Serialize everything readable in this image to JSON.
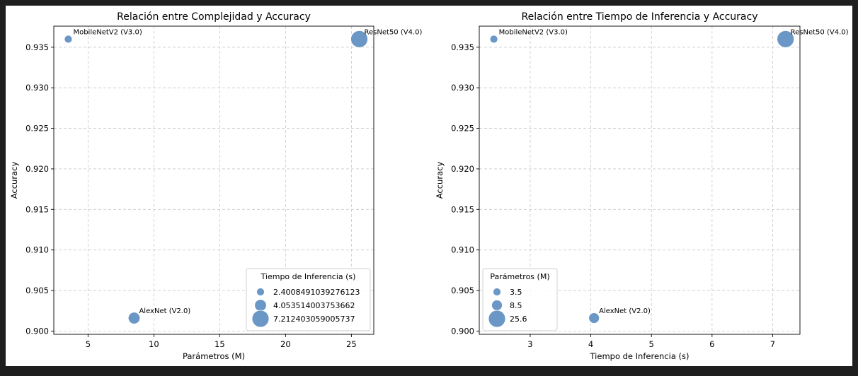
{
  "colors": {
    "background": "#1e1e1e",
    "panel": "#ffffff",
    "marker": "#5b8cc0",
    "grid": "#c8c8c8"
  },
  "chart_data": [
    {
      "type": "scatter",
      "title": "Relación entre Complejidad y Accuracy",
      "xlabel": "Parámetros (M)",
      "ylabel": "Accuracy",
      "xlim": [
        2.4,
        26.7
      ],
      "ylim": [
        0.8996,
        0.9376
      ],
      "xticks": [
        5,
        10,
        15,
        20,
        25
      ],
      "yticks": [
        0.9,
        0.905,
        0.91,
        0.915,
        0.92,
        0.925,
        0.93,
        0.935
      ],
      "grid": true,
      "points": [
        {
          "label": "MobileNetV2 (V3.0)",
          "x": 3.5,
          "y": 0.936,
          "size": 2.4008491039276123
        },
        {
          "label": "AlexNet (V2.0)",
          "x": 8.5,
          "y": 0.9016,
          "size": 4.053514003753662
        },
        {
          "label": "ResNet50 (V4.0)",
          "x": 25.6,
          "y": 0.936,
          "size": 7.212403059005737
        }
      ],
      "legend": {
        "title": "Tiempo de Inferencia (s)",
        "placement": "lower-right",
        "entries": [
          "2.4008491039276123",
          "4.053514003753662",
          "7.212403059005737"
        ],
        "entry_sizes": [
          2.4008491039276123,
          4.053514003753662,
          7.212403059005737
        ]
      }
    },
    {
      "type": "scatter",
      "title": "Relación entre Tiempo de Inferencia y Accuracy",
      "xlabel": "Tiempo de Inferencia (s)",
      "ylabel": "Accuracy",
      "xlim": [
        2.16,
        7.45
      ],
      "ylim": [
        0.8996,
        0.9376
      ],
      "xticks": [
        3,
        4,
        5,
        6,
        7
      ],
      "yticks": [
        0.9,
        0.905,
        0.91,
        0.915,
        0.92,
        0.925,
        0.93,
        0.935
      ],
      "grid": true,
      "points": [
        {
          "label": "MobileNetV2 (V3.0)",
          "x": 2.4008491039276123,
          "y": 0.936,
          "size": 3.5
        },
        {
          "label": "AlexNet (V2.0)",
          "x": 4.053514003753662,
          "y": 0.9016,
          "size": 8.5
        },
        {
          "label": "ResNet50 (V4.0)",
          "x": 7.212403059005737,
          "y": 0.936,
          "size": 25.6
        }
      ],
      "legend": {
        "title": "Parámetros (M)",
        "placement": "lower-left",
        "entries": [
          "3.5",
          "8.5",
          "25.6"
        ],
        "entry_sizes": [
          3.5,
          8.5,
          25.6
        ]
      }
    }
  ]
}
